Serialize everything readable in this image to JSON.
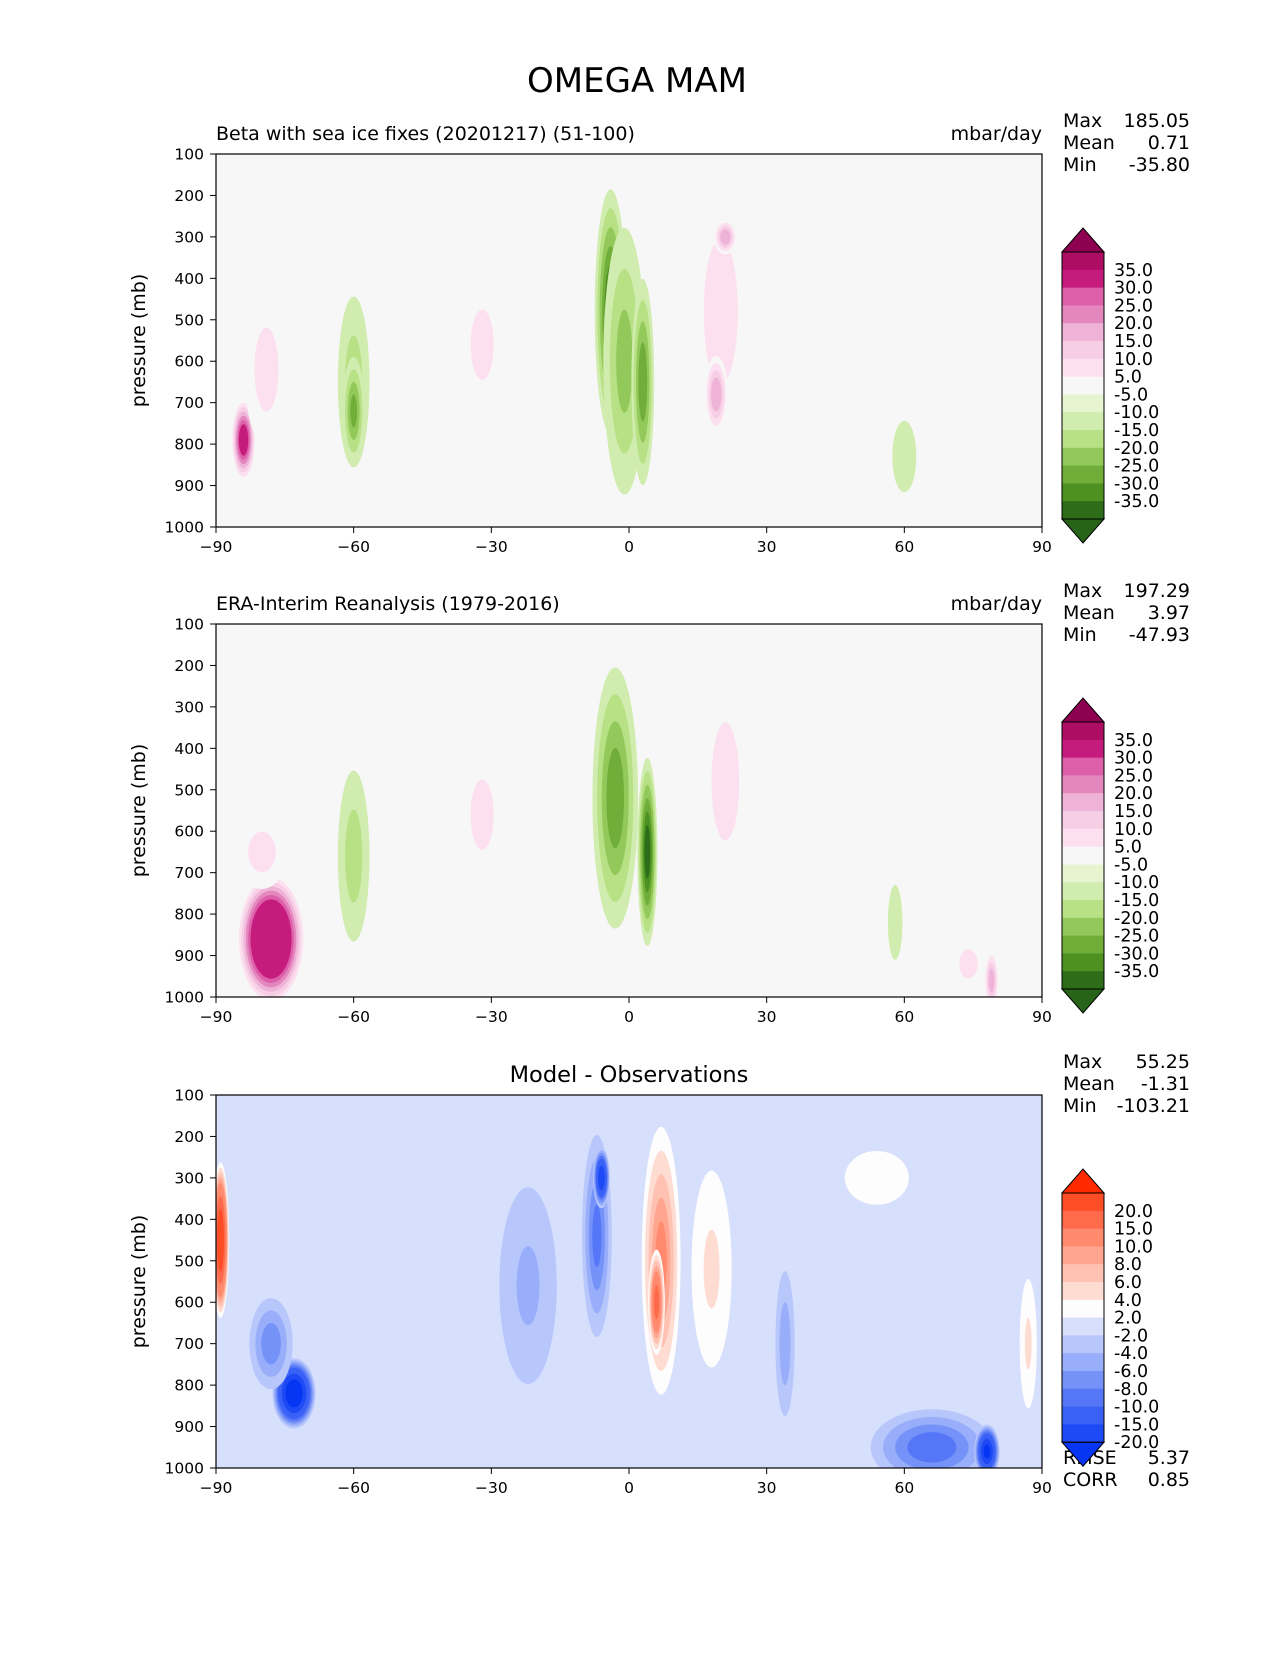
{
  "figure": {
    "title": "OMEGA MAM"
  },
  "y_ticks": [
    "100",
    "200",
    "300",
    "400",
    "500",
    "600",
    "700",
    "800",
    "900",
    "1000"
  ],
  "x_ticks": [
    "−90",
    "−60",
    "−30",
    "0",
    "30",
    "60",
    "90"
  ],
  "ylabel": "pressure (mb)",
  "stat_labels": {
    "max": "Max",
    "mean": "Mean",
    "min": "Min",
    "rmse": "RMSE",
    "corr": "CORR"
  },
  "panels": [
    {
      "id": "test",
      "left_title": "Beta with sea ice fixes (20201217) (51-100)",
      "center_title": "",
      "units": "mbar/day",
      "stats": {
        "max": "185.05",
        "mean": "0.71",
        "min": "-35.80"
      },
      "colorbar": {
        "labels": [
          "35.0",
          "30.0",
          "25.0",
          "20.0",
          "15.0",
          "10.0",
          "5.0",
          "-5.0",
          "-10.0",
          "-15.0",
          "-20.0",
          "-25.0",
          "-30.0",
          "-35.0"
        ],
        "colors": [
          "#8e0152",
          "#ad0e64",
          "#c51b7d",
          "#dd5ea9",
          "#e587bf",
          "#efb3d8",
          "#f6cfe6",
          "#fde0ef",
          "#f7f7f7",
          "#e6f5d0",
          "#d0ecae",
          "#b8e186",
          "#93c95a",
          "#70ad39",
          "#4d9221",
          "#2d6d1a",
          "#276419"
        ]
      }
    },
    {
      "id": "reference",
      "left_title": "ERA-Interim Reanalysis (1979-2016)",
      "center_title": "",
      "units": "mbar/day",
      "stats": {
        "max": "197.29",
        "mean": "3.97",
        "min": "-47.93"
      },
      "colorbar": {
        "labels": [
          "35.0",
          "30.0",
          "25.0",
          "20.0",
          "15.0",
          "10.0",
          "5.0",
          "-5.0",
          "-10.0",
          "-15.0",
          "-20.0",
          "-25.0",
          "-30.0",
          "-35.0"
        ],
        "colors": [
          "#8e0152",
          "#ad0e64",
          "#c51b7d",
          "#dd5ea9",
          "#e587bf",
          "#efb3d8",
          "#f6cfe6",
          "#fde0ef",
          "#f7f7f7",
          "#e6f5d0",
          "#d0ecae",
          "#b8e186",
          "#93c95a",
          "#70ad39",
          "#4d9221",
          "#2d6d1a",
          "#276419"
        ]
      }
    },
    {
      "id": "difference",
      "left_title": "",
      "center_title": "Model - Observations",
      "units": "",
      "stats": {
        "max": "55.25",
        "mean": "-1.31",
        "min": "-103.21",
        "rmse": "5.37",
        "corr": "0.85"
      },
      "colorbar": {
        "labels": [
          "20.0",
          "15.0",
          "10.0",
          "8.0",
          "6.0",
          "4.0",
          "2.0",
          "-2.0",
          "-4.0",
          "-6.0",
          "-8.0",
          "-10.0",
          "-15.0",
          "-20.0"
        ],
        "colors": [
          "#ff2a00",
          "#ff4d26",
          "#ff6a4a",
          "#ff8a6e",
          "#ffa590",
          "#ffc2b2",
          "#ffdcd2",
          "#fdfdfd",
          "#d6dffc",
          "#b8c7fb",
          "#98aefa",
          "#7592f8",
          "#5577f7",
          "#3a61f6",
          "#1e4af5",
          "#0636f3"
        ]
      }
    }
  ],
  "chart_data": [
    {
      "type": "heatmap",
      "title": "Beta with sea ice fixes (20201217) (51-100)",
      "units": "mbar/day",
      "xlabel": "",
      "ylabel": "pressure (mb)",
      "xlim": [
        -90,
        90
      ],
      "ylim": [
        1000,
        100
      ],
      "x_ticks": [
        -90,
        -60,
        -30,
        0,
        30,
        60,
        90
      ],
      "y_ticks": [
        100,
        200,
        300,
        400,
        500,
        600,
        700,
        800,
        900,
        1000
      ],
      "levels": [
        -35,
        -30,
        -25,
        -20,
        -15,
        -10,
        -5,
        5,
        10,
        15,
        20,
        25,
        30,
        35
      ],
      "features": [
        {
          "lat": -84,
          "p": 790,
          "dlat": 3,
          "dp": 110,
          "value": 40
        },
        {
          "lat": -79,
          "p": 620,
          "dlat": 7,
          "dp": 270,
          "value": 12
        },
        {
          "lat": -60,
          "p": 650,
          "dlat": 5,
          "dp": 300,
          "value": -12
        },
        {
          "lat": -60,
          "p": 720,
          "dlat": 3,
          "dp": 160,
          "value": -20
        },
        {
          "lat": -32,
          "p": 560,
          "dlat": 10,
          "dp": 340,
          "value": 10
        },
        {
          "lat": -4,
          "p": 480,
          "dlat": 4,
          "dp": 340,
          "value": -28
        },
        {
          "lat": -1,
          "p": 600,
          "dlat": 6,
          "dp": 420,
          "value": -16
        },
        {
          "lat": 3,
          "p": 650,
          "dlat": 3,
          "dp": 300,
          "value": -22
        },
        {
          "lat": 20,
          "p": 480,
          "dlat": 8,
          "dp": 380,
          "value": 14
        },
        {
          "lat": 19,
          "p": 680,
          "dlat": 3,
          "dp": 110,
          "value": 24
        },
        {
          "lat": 21,
          "p": 300,
          "dlat": 3,
          "dp": 50,
          "value": 24
        },
        {
          "lat": 60,
          "p": 830,
          "dlat": 7,
          "dp": 230,
          "value": -6
        },
        {
          "lat": 78,
          "p": 650,
          "dlat": 3,
          "dp": 180,
          "value": 6
        }
      ]
    },
    {
      "type": "heatmap",
      "title": "ERA-Interim Reanalysis (1979-2016)",
      "units": "mbar/day",
      "xlabel": "",
      "ylabel": "pressure (mb)",
      "xlim": [
        -90,
        90
      ],
      "ylim": [
        1000,
        100
      ],
      "x_ticks": [
        -90,
        -60,
        -30,
        0,
        30,
        60,
        90
      ],
      "y_ticks": [
        100,
        200,
        300,
        400,
        500,
        600,
        700,
        800,
        900,
        1000
      ],
      "levels": [
        -35,
        -30,
        -25,
        -20,
        -15,
        -10,
        -5,
        5,
        10,
        15,
        20,
        25,
        30,
        35
      ],
      "features": [
        {
          "lat": -78,
          "p": 860,
          "dlat": 8,
          "dp": 170,
          "value": 60
        },
        {
          "lat": -80,
          "p": 650,
          "dlat": 8,
          "dp": 130,
          "value": 12
        },
        {
          "lat": -60,
          "p": 660,
          "dlat": 5,
          "dp": 300,
          "value": -12
        },
        {
          "lat": -32,
          "p": 560,
          "dlat": 10,
          "dp": 340,
          "value": 10
        },
        {
          "lat": -3,
          "p": 520,
          "dlat": 6,
          "dp": 380,
          "value": -22
        },
        {
          "lat": 4,
          "p": 650,
          "dlat": 2.5,
          "dp": 260,
          "value": -30
        },
        {
          "lat": 21,
          "p": 480,
          "dlat": 8,
          "dp": 380,
          "value": 12
        },
        {
          "lat": 58,
          "p": 820,
          "dlat": 3,
          "dp": 170,
          "value": -8
        },
        {
          "lat": 74,
          "p": 920,
          "dlat": 8,
          "dp": 140,
          "value": 10
        },
        {
          "lat": 79,
          "p": 960,
          "dlat": 2,
          "dp": 90,
          "value": 22
        }
      ]
    },
    {
      "type": "heatmap",
      "title": "Model - Observations",
      "units": "",
      "xlabel": "",
      "ylabel": "pressure (mb)",
      "xlim": [
        -90,
        90
      ],
      "ylim": [
        1000,
        100
      ],
      "x_ticks": [
        -90,
        -60,
        -30,
        0,
        30,
        60,
        90
      ],
      "y_ticks": [
        100,
        200,
        300,
        400,
        500,
        600,
        700,
        800,
        900,
        1000
      ],
      "levels": [
        -20,
        -15,
        -10,
        -8,
        -6,
        -4,
        -2,
        2,
        4,
        6,
        8,
        10,
        15,
        20
      ],
      "features": [
        {
          "lat": -89,
          "p": 450,
          "dlat": 2,
          "dp": 200,
          "value": 24
        },
        {
          "lat": -73,
          "p": 820,
          "dlat": 5,
          "dp": 90,
          "value": -24
        },
        {
          "lat": -78,
          "p": 700,
          "dlat": 6,
          "dp": 140,
          "value": -7
        },
        {
          "lat": -22,
          "p": 560,
          "dlat": 10,
          "dp": 380,
          "value": -4
        },
        {
          "lat": -7,
          "p": 440,
          "dlat": 4,
          "dp": 300,
          "value": -8
        },
        {
          "lat": -6,
          "p": 300,
          "dlat": 2,
          "dp": 80,
          "value": -18
        },
        {
          "lat": 7,
          "p": 500,
          "dlat": 5,
          "dp": 380,
          "value": 10
        },
        {
          "lat": 6,
          "p": 600,
          "dlat": 2,
          "dp": 140,
          "value": 16
        },
        {
          "lat": 18,
          "p": 520,
          "dlat": 7,
          "dp": 380,
          "value": 4
        },
        {
          "lat": 34,
          "p": 700,
          "dlat": 3,
          "dp": 250,
          "value": -5
        },
        {
          "lat": 54,
          "p": 300,
          "dlat": 14,
          "dp": 130,
          "value": 3
        },
        {
          "lat": 66,
          "p": 950,
          "dlat": 16,
          "dp": 110,
          "value": -9
        },
        {
          "lat": 78,
          "p": 960,
          "dlat": 3,
          "dp": 70,
          "value": -20
        },
        {
          "lat": 87,
          "p": 700,
          "dlat": 3,
          "dp": 250,
          "value": 4
        }
      ]
    }
  ]
}
